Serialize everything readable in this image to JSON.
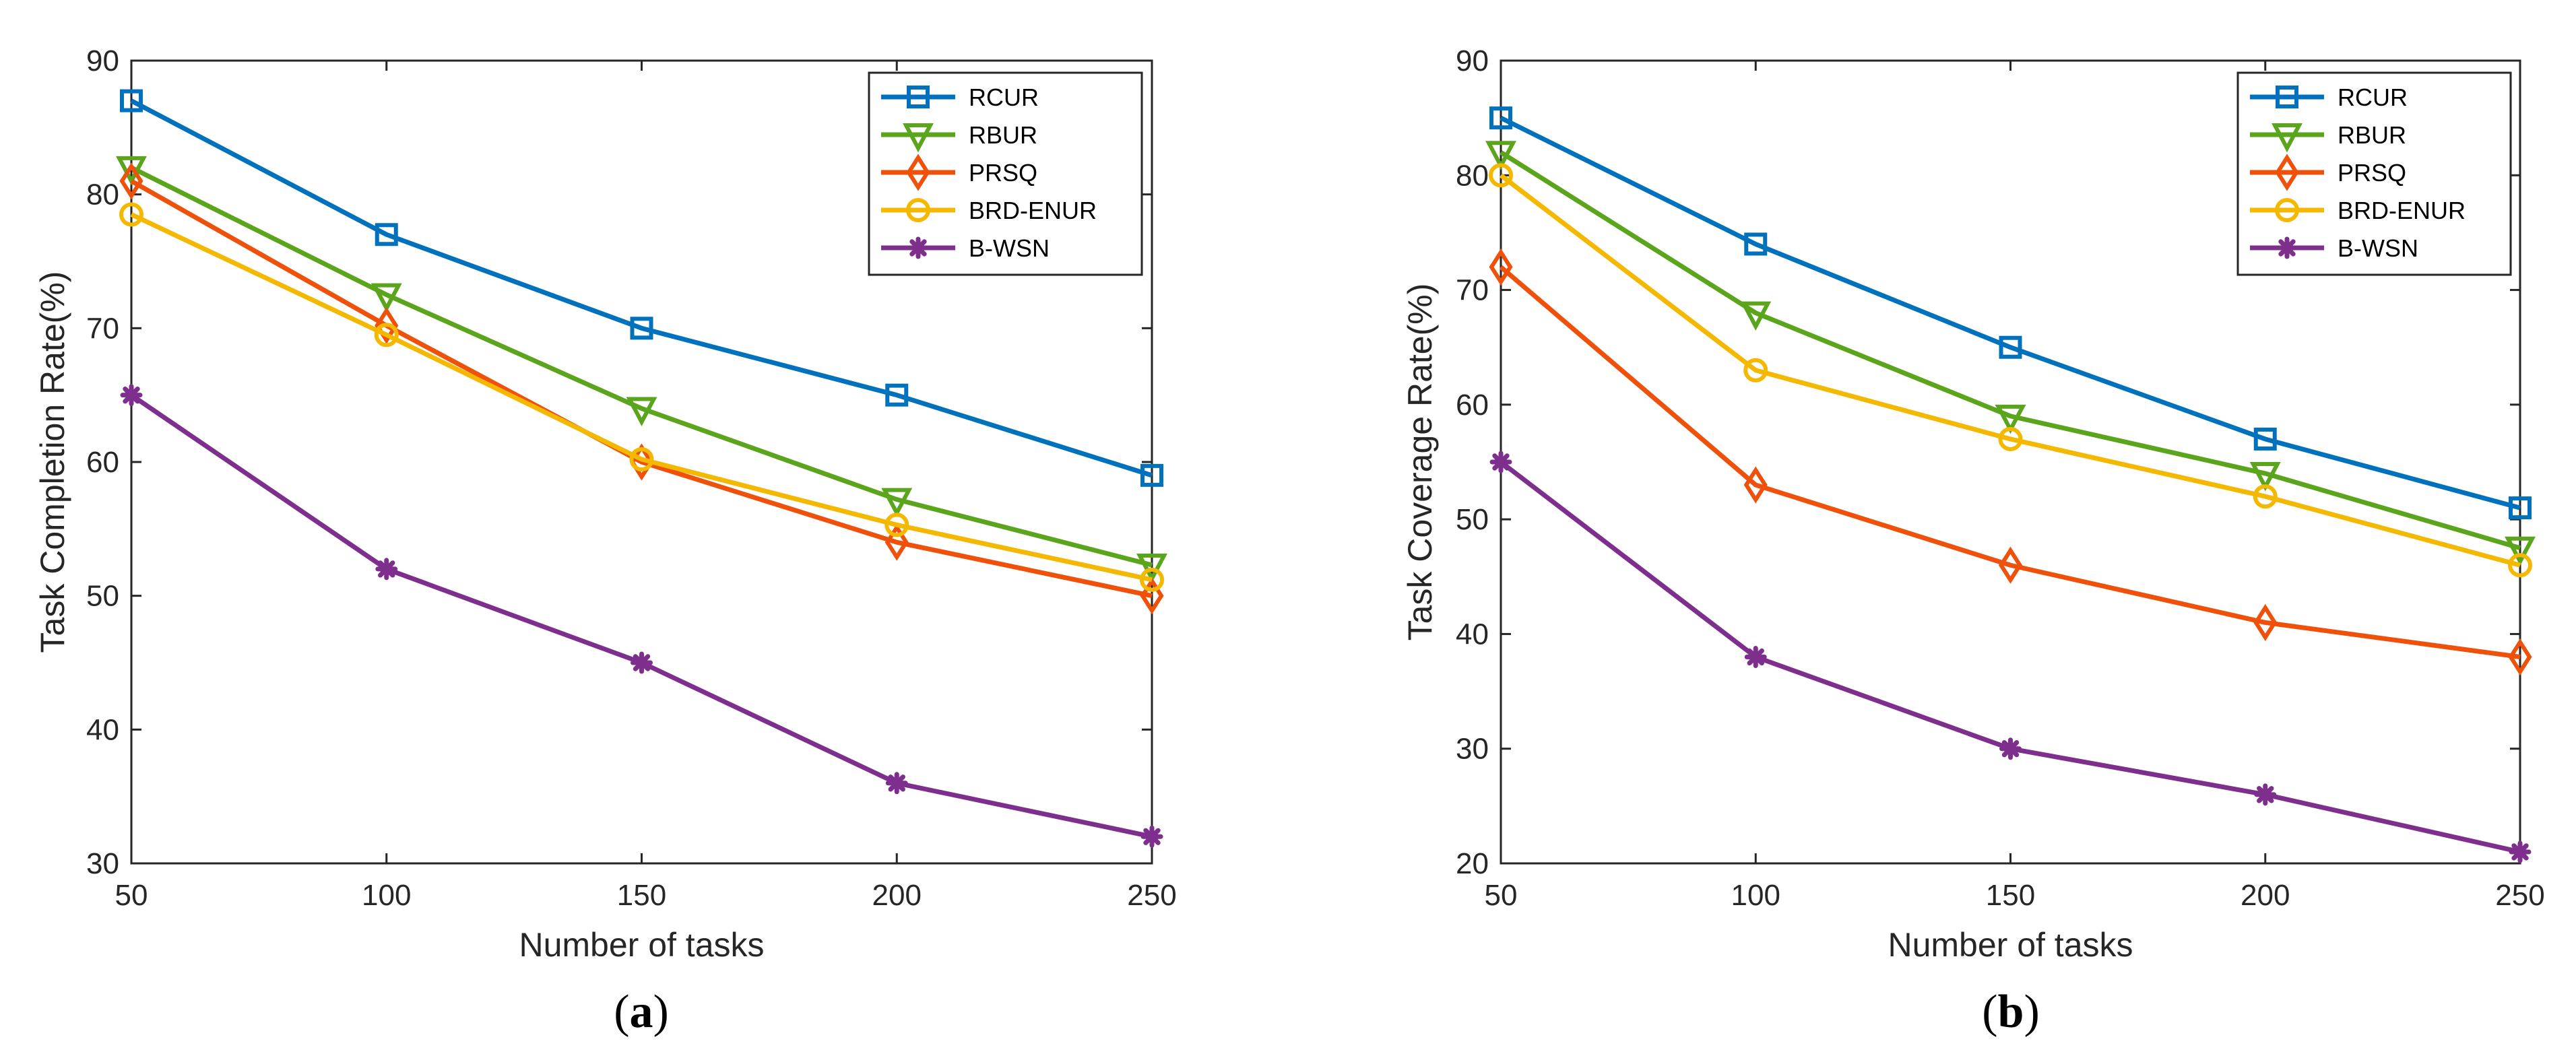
{
  "chart_data": [
    {
      "type": "line",
      "panel": "(a)",
      "panel_letter": "a",
      "xlabel": "Number of tasks",
      "ylabel": "Task Completion Rate(%)",
      "xlim": [
        50,
        250
      ],
      "ylim": [
        30,
        90
      ],
      "x": [
        50,
        100,
        150,
        200,
        250
      ],
      "xticks": [
        "50",
        "100",
        "150",
        "200",
        "250"
      ],
      "yticks": [
        "30",
        "40",
        "50",
        "60",
        "70",
        "80",
        "90"
      ],
      "grid": false,
      "legend_position": "top-right",
      "series": [
        {
          "name": "RCUR",
          "color": "#0072BD",
          "marker": "square",
          "values": [
            87,
            77,
            70,
            65,
            59
          ]
        },
        {
          "name": "RBUR",
          "color": "#5BA51D",
          "marker": "triangle-down",
          "values": [
            82,
            72.5,
            64,
            57.2,
            52.3
          ]
        },
        {
          "name": "PRSQ",
          "color": "#F0510A",
          "marker": "diamond",
          "values": [
            81,
            70.2,
            60,
            54,
            50
          ]
        },
        {
          "name": "BRD-ENUR",
          "color": "#F5B800",
          "marker": "circle",
          "values": [
            78.5,
            69.5,
            60.2,
            55.3,
            51.2
          ]
        },
        {
          "name": "B-WSN",
          "color": "#7E2F8E",
          "marker": "asterisk",
          "values": [
            65,
            52,
            45,
            36,
            32
          ]
        }
      ]
    },
    {
      "type": "line",
      "panel": "(b)",
      "panel_letter": "b",
      "xlabel": "Number of tasks",
      "ylabel": "Task Coverage Rate(%)",
      "xlim": [
        50,
        250
      ],
      "ylim": [
        20,
        90
      ],
      "x": [
        50,
        100,
        150,
        200,
        250
      ],
      "xticks": [
        "50",
        "100",
        "150",
        "200",
        "250"
      ],
      "yticks": [
        "20",
        "30",
        "40",
        "50",
        "60",
        "70",
        "80",
        "90"
      ],
      "grid": false,
      "legend_position": "top-right",
      "series": [
        {
          "name": "RCUR",
          "color": "#0072BD",
          "marker": "square",
          "values": [
            85,
            74,
            65,
            57,
            51
          ]
        },
        {
          "name": "RBUR",
          "color": "#5BA51D",
          "marker": "triangle-down",
          "values": [
            82,
            68,
            59,
            54,
            47.5
          ]
        },
        {
          "name": "PRSQ",
          "color": "#F0510A",
          "marker": "diamond",
          "values": [
            72,
            53,
            46,
            41,
            38
          ]
        },
        {
          "name": "BRD-ENUR",
          "color": "#F5B800",
          "marker": "circle",
          "values": [
            80,
            63,
            57,
            52,
            46
          ]
        },
        {
          "name": "B-WSN",
          "color": "#7E2F8E",
          "marker": "asterisk",
          "values": [
            55,
            38,
            30,
            26,
            21
          ]
        }
      ]
    }
  ]
}
